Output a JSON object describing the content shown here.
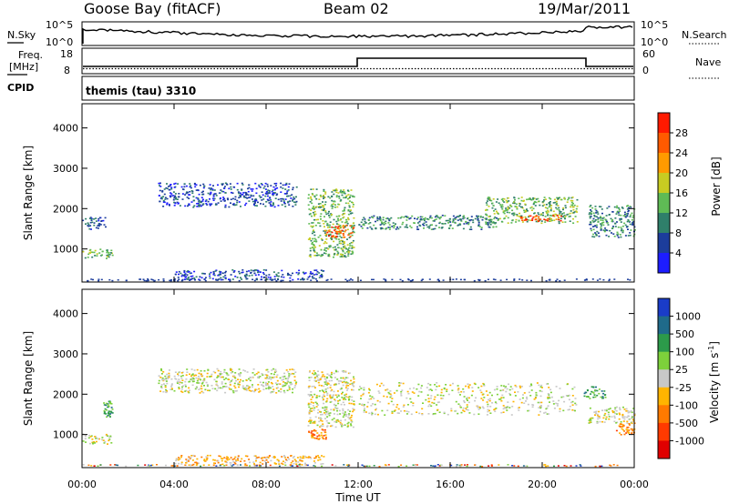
{
  "header": {
    "station": "Goose Bay (fitACF)",
    "beam": "Beam 02",
    "date": "19/Mar/2011"
  },
  "params": {
    "nsky_label": "N.Sky",
    "nsky_ticks": [
      "10^5",
      "10^0"
    ],
    "nsearch_label": "N.Search",
    "freq_label_top": "Freq.",
    "freq_label_unit": "[MHz]",
    "freq_ticks": [
      "18",
      "8"
    ],
    "nave_label": "Nave",
    "nave_ticks": [
      "60",
      "0"
    ],
    "cpid_label": "CPID",
    "cpid_value": "themis (tau) 3310"
  },
  "chart_data": [
    {
      "type": "heatmap",
      "name": "power",
      "xlabel": "Time UT",
      "ylabel": "Slant Range [km]",
      "xlim": [
        0,
        24
      ],
      "ylim": [
        180,
        4600
      ],
      "x_ticks": [
        "00:00",
        "04:00",
        "08:00",
        "12:00",
        "16:00",
        "20:00",
        "00:00"
      ],
      "x_tick_values": [
        0,
        4,
        8,
        12,
        16,
        20,
        24
      ],
      "y_ticks": [
        "1000",
        "2000",
        "3000",
        "4000"
      ],
      "y_tick_values": [
        1000,
        2000,
        3000,
        4000
      ],
      "colorbar": {
        "label": "Power [dB]",
        "ticks": [
          "4",
          "8",
          "12",
          "16",
          "20",
          "24",
          "28"
        ],
        "colors": [
          "#1d1dff",
          "#1c3d9c",
          "#2f7f6a",
          "#5fbb55",
          "#c8cc22",
          "#ff9a00",
          "#ff5a00",
          "#ff1a00"
        ]
      },
      "regions": [
        {
          "t": [
            0.0,
            1.3
          ],
          "r": [
            780,
            1030
          ],
          "level": 3
        },
        {
          "t": [
            0.0,
            1.0
          ],
          "r": [
            1500,
            1800
          ],
          "level": 1
        },
        {
          "t": [
            3.3,
            9.3
          ],
          "r": [
            2050,
            2650
          ],
          "level": 1
        },
        {
          "t": [
            9.8,
            11.8
          ],
          "r": [
            800,
            2500
          ],
          "level": 3
        },
        {
          "t": [
            10.5,
            11.8
          ],
          "r": [
            1300,
            1600
          ],
          "level": 6
        },
        {
          "t": [
            12.0,
            18.0
          ],
          "r": [
            1500,
            1850
          ],
          "level": 2
        },
        {
          "t": [
            17.5,
            21.5
          ],
          "r": [
            1650,
            2300
          ],
          "level": 3
        },
        {
          "t": [
            19.0,
            20.8
          ],
          "r": [
            1700,
            1850
          ],
          "level": 6
        },
        {
          "t": [
            22.0,
            24.0
          ],
          "r": [
            1300,
            2100
          ],
          "level": 2
        },
        {
          "t": [
            4.0,
            10.5
          ],
          "r": [
            250,
            500
          ],
          "level": 1
        }
      ]
    },
    {
      "type": "heatmap",
      "name": "velocity",
      "xlabel": "Time UT",
      "ylabel": "Slant Range [km]",
      "xlim": [
        0,
        24
      ],
      "ylim": [
        180,
        4600
      ],
      "x_ticks": [
        "00:00",
        "04:00",
        "08:00",
        "12:00",
        "16:00",
        "20:00",
        "00:00"
      ],
      "x_tick_values": [
        0,
        4,
        8,
        12,
        16,
        20,
        24
      ],
      "y_ticks": [
        "1000",
        "2000",
        "3000",
        "4000"
      ],
      "y_tick_values": [
        1000,
        2000,
        3000,
        4000
      ],
      "colorbar": {
        "label": "Velocity [m s^-1]",
        "ticks": [
          "1000",
          "500",
          "100",
          "25",
          "-25",
          "-100",
          "-500",
          "-1000"
        ],
        "colors": [
          "#1a3cc8",
          "#1f6a8a",
          "#2c9a4a",
          "#7dd13b",
          "#c8c8c8",
          "#ffb400",
          "#ff7a00",
          "#ff3a00",
          "#e00000"
        ]
      },
      "regions": [
        {
          "t": [
            0.0,
            1.3
          ],
          "r": [
            780,
            1030
          ],
          "level": 4
        },
        {
          "t": [
            0.9,
            1.3
          ],
          "r": [
            1450,
            1850
          ],
          "level": 2
        },
        {
          "t": [
            3.3,
            9.3
          ],
          "r": [
            2050,
            2650
          ],
          "level": 4
        },
        {
          "t": [
            9.8,
            11.8
          ],
          "r": [
            1200,
            2600
          ],
          "level": 4
        },
        {
          "t": [
            9.8,
            10.6
          ],
          "r": [
            900,
            1150
          ],
          "level": 6
        },
        {
          "t": [
            12.0,
            21.5
          ],
          "r": [
            1500,
            2300
          ],
          "level": 4
        },
        {
          "t": [
            21.8,
            22.8
          ],
          "r": [
            1900,
            2200
          ],
          "level": 2
        },
        {
          "t": [
            22.0,
            24.0
          ],
          "r": [
            1300,
            1700
          ],
          "level": 4
        },
        {
          "t": [
            23.2,
            24.0
          ],
          "r": [
            1000,
            1300
          ],
          "level": 6
        },
        {
          "t": [
            4.0,
            10.5
          ],
          "r": [
            250,
            500
          ],
          "level": 5
        }
      ]
    }
  ]
}
